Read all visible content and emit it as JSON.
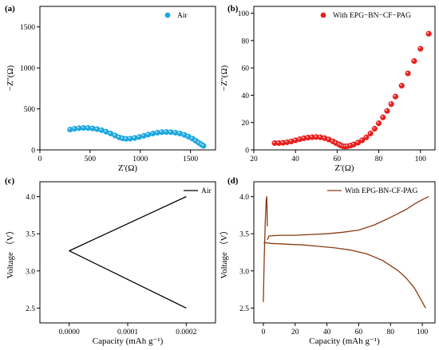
{
  "chart_data": [
    {
      "panel": "(a)",
      "type": "scatter",
      "xlabel": "Z'(Ω)",
      "ylabel": "−Z''(Ω)",
      "xlim": [
        0,
        1750
      ],
      "ylim": [
        0,
        1750
      ],
      "xticks": [
        0,
        500,
        1000,
        1500
      ],
      "yticks": [
        0,
        500,
        1000,
        1500
      ],
      "legend": "top-right",
      "color": "#1ea8de",
      "series": [
        {
          "name": "Air",
          "x": [
            300,
            345,
            390,
            435,
            480,
            525,
            570,
            615,
            660,
            705,
            750,
            790,
            825,
            860,
            900,
            945,
            990,
            1035,
            1080,
            1125,
            1170,
            1215,
            1260,
            1305,
            1350,
            1395,
            1440,
            1480,
            1520,
            1555,
            1585,
            1610,
            1630
          ],
          "y": [
            248,
            258,
            265,
            268,
            267,
            262,
            253,
            240,
            222,
            200,
            175,
            153,
            140,
            135,
            137,
            145,
            157,
            172,
            187,
            200,
            210,
            216,
            218,
            216,
            210,
            199,
            183,
            162,
            137,
            110,
            85,
            65,
            50
          ]
        }
      ]
    },
    {
      "panel": "(b)",
      "type": "scatter",
      "xlabel": "Z'(Ω)",
      "ylabel": "−Z''(Ω)",
      "xlim": [
        20,
        107
      ],
      "ylim": [
        0,
        105
      ],
      "xticks": [
        20,
        40,
        60,
        80,
        100
      ],
      "yticks": [
        0,
        20,
        40,
        60,
        80,
        100
      ],
      "legend": "top-right",
      "color": "#e8201e",
      "series": [
        {
          "name": "With EPG−BN−CF−PAG",
          "x": [
            30,
            32,
            34,
            36,
            38,
            40,
            42,
            44,
            46,
            48,
            50,
            52,
            54,
            56,
            58,
            59.5,
            61,
            62,
            63,
            64,
            65,
            66.5,
            68,
            70,
            72,
            74,
            76,
            78,
            80,
            82,
            84,
            86,
            88,
            91,
            94,
            97,
            100,
            104
          ],
          "y": [
            5,
            5,
            5.2,
            5.6,
            6.2,
            7,
            7.8,
            8.5,
            9,
            9.3,
            9.4,
            9.2,
            8.6,
            7.6,
            6.2,
            5,
            3.9,
            3.1,
            2.6,
            2.5,
            2.7,
            3.2,
            4,
            5.3,
            7,
            9.2,
            12,
            15.5,
            19.5,
            23.8,
            28.5,
            33.5,
            39,
            47,
            56,
            65,
            74,
            85
          ]
        }
      ]
    },
    {
      "panel": "(c)",
      "type": "line",
      "xlabel": "Capacity (mAh g⁻¹)",
      "ylabel": "Voltage （V）",
      "xlim": [
        -5e-05,
        0.00025
      ],
      "ylim": [
        2.3,
        4.2
      ],
      "xticks": [
        "0.0000",
        "0.0001",
        "0.0002"
      ],
      "yticks": [
        "2.5",
        "3.0",
        "3.5",
        "4.0"
      ],
      "legend": "top-right",
      "color": "#000000",
      "series": [
        {
          "name": "Air",
          "x": [
            0.0002,
            0.0,
            0.0002
          ],
          "y": [
            4.0,
            3.27,
            2.5
          ]
        }
      ]
    },
    {
      "panel": "(d)",
      "type": "line",
      "xlabel": "Capacity (mAh g⁻¹)",
      "ylabel": "Voltage （V）",
      "xlim": [
        -6,
        108
      ],
      "ylim": [
        2.3,
        4.2
      ],
      "xticks": [
        0,
        20,
        40,
        60,
        80,
        100
      ],
      "yticks": [
        "2.5",
        "3.0",
        "3.5",
        "4.0"
      ],
      "legend": "top-right",
      "color": "#8a3b12",
      "series": [
        {
          "name": "With EPG-BN-CF-PAG",
          "segments": [
            {
              "x": [
                0,
                0.6,
                1.2,
                1.8,
                2.2,
                2.5
              ],
              "y": [
                2.58,
                3.2,
                3.65,
                3.95,
                4.0,
                3.6
              ]
            },
            {
              "x": [
                2.5,
                3.5,
                10,
                20,
                30,
                40,
                50,
                60,
                70,
                80,
                90,
                95,
                100,
                104
              ],
              "y": [
                3.42,
                3.47,
                3.48,
                3.48,
                3.49,
                3.5,
                3.52,
                3.55,
                3.62,
                3.72,
                3.83,
                3.9,
                3.96,
                4.0
              ]
            },
            {
              "x": [
                0.2,
                1.5,
                5,
                15,
                25,
                35,
                45,
                55,
                65,
                75,
                85,
                90,
                95,
                99,
                102
              ],
              "y": [
                3.37,
                3.38,
                3.37,
                3.36,
                3.35,
                3.33,
                3.31,
                3.28,
                3.23,
                3.14,
                3.0,
                2.9,
                2.77,
                2.62,
                2.5
              ]
            }
          ]
        }
      ]
    }
  ]
}
